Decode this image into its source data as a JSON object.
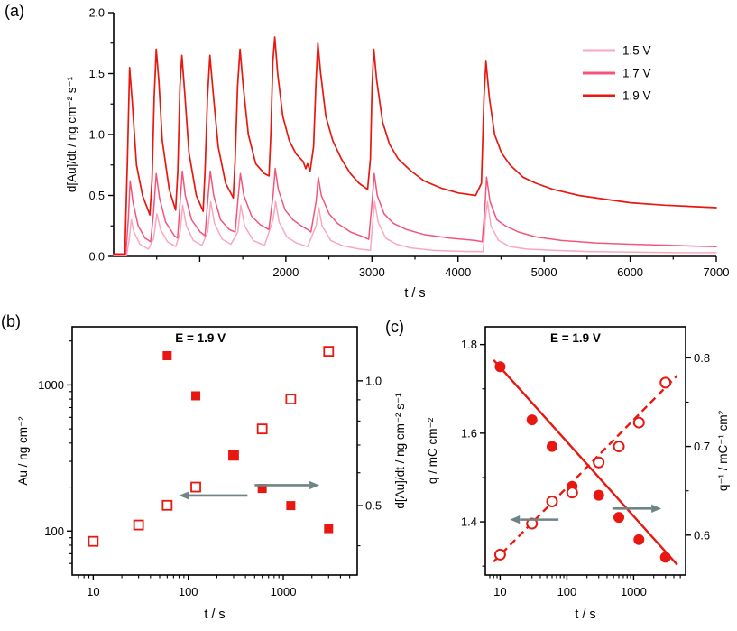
{
  "panels": {
    "a": {
      "label": "(a)"
    },
    "b": {
      "label": "(b)"
    },
    "c": {
      "label": "(c)"
    }
  },
  "colors": {
    "v15": "#f9a7bf",
    "v17": "#f4547c",
    "v19": "#e81810",
    "red": "#e81810",
    "arrow": "#6e8486"
  },
  "chart_data": [
    {
      "id": "a",
      "type": "line",
      "xlabel": "t / s",
      "ylabel": "d[Au]/dt / ng cm⁻² s⁻¹",
      "xlim": [
        0,
        7000
      ],
      "ylim": [
        0,
        2.0
      ],
      "x_tick_values": [
        1000,
        2000,
        3000,
        4000,
        5000,
        6000,
        7000
      ],
      "x_tick_labels": [
        "",
        "2000",
        "3000",
        "4000",
        "5000",
        "6000",
        "7000"
      ],
      "x_minor_ticks": [
        500,
        1500,
        2500,
        3500,
        4500,
        5500,
        6500
      ],
      "y_tick_values": [
        0,
        0.5,
        1.0,
        1.5,
        2.0
      ],
      "y_tick_labels": [
        "0.0",
        "0.5",
        "1.0",
        "1.5",
        "2.0"
      ],
      "y_minor_ticks": [
        0.25,
        0.75,
        1.25,
        1.75
      ],
      "legend": [
        {
          "label": "1.5 V",
          "color_key": "v15"
        },
        {
          "label": "1.7 V",
          "color_key": "v17"
        },
        {
          "label": "1.9 V",
          "color_key": "v19"
        }
      ],
      "series": [
        {
          "name": "1.5 V",
          "color_key": "v15",
          "width": 1.5,
          "x": [
            0,
            150,
            182,
            205,
            235,
            305,
            405,
            465,
            502,
            545,
            625,
            722,
            772,
            802,
            845,
            925,
            1025,
            1092,
            1128,
            1172,
            1262,
            1362,
            1442,
            1478,
            1522,
            1622,
            1752,
            1852,
            1882,
            1922,
            2012,
            2122,
            2252,
            2352,
            2382,
            2422,
            2522,
            2652,
            2852,
            2982,
            3012,
            3032,
            3072,
            3162,
            3282,
            3452,
            3702,
            4102,
            4292,
            4317,
            4342,
            4382,
            4472,
            4602,
            4802,
            5102,
            5502,
            6002,
            6502,
            7000
          ],
          "y": [
            0.005,
            0.005,
            0.15,
            0.3,
            0.2,
            0.1,
            0.06,
            0.15,
            0.35,
            0.22,
            0.12,
            0.08,
            0.2,
            0.42,
            0.25,
            0.13,
            0.09,
            0.2,
            0.45,
            0.27,
            0.14,
            0.1,
            0.2,
            0.42,
            0.25,
            0.13,
            0.09,
            0.3,
            0.45,
            0.28,
            0.16,
            0.11,
            0.08,
            0.25,
            0.4,
            0.25,
            0.13,
            0.09,
            0.06,
            0.05,
            0.3,
            0.45,
            0.28,
            0.15,
            0.1,
            0.07,
            0.05,
            0.04,
            0.04,
            0.3,
            0.45,
            0.25,
            0.13,
            0.08,
            0.06,
            0.05,
            0.04,
            0.035,
            0.03,
            0.03
          ]
        },
        {
          "name": "1.7 V",
          "color_key": "v17",
          "width": 1.5,
          "x": [
            0,
            140,
            170,
            192,
            225,
            285,
            365,
            430,
            462,
            495,
            532,
            605,
            705,
            742,
            772,
            797,
            832,
            905,
            1005,
            1062,
            1092,
            1122,
            1162,
            1242,
            1342,
            1412,
            1442,
            1472,
            1512,
            1602,
            1702,
            1802,
            1852,
            1877,
            1912,
            1992,
            2082,
            2182,
            2252,
            2292,
            2352,
            2377,
            2412,
            2502,
            2602,
            2752,
            2902,
            2962,
            3002,
            3027,
            3062,
            3142,
            3252,
            3402,
            3602,
            3902,
            4202,
            4282,
            4312,
            4332,
            4372,
            4452,
            4552,
            4702,
            4902,
            5202,
            5602,
            6002,
            6502,
            7000
          ],
          "y": [
            0.01,
            0.01,
            0.3,
            0.62,
            0.44,
            0.25,
            0.15,
            0.12,
            0.35,
            0.68,
            0.48,
            0.28,
            0.17,
            0.15,
            0.45,
            0.7,
            0.5,
            0.3,
            0.2,
            0.17,
            0.45,
            0.7,
            0.5,
            0.3,
            0.22,
            0.2,
            0.45,
            0.68,
            0.5,
            0.33,
            0.26,
            0.22,
            0.5,
            0.72,
            0.55,
            0.38,
            0.3,
            0.25,
            0.22,
            0.2,
            0.45,
            0.65,
            0.5,
            0.35,
            0.27,
            0.2,
            0.16,
            0.14,
            0.45,
            0.68,
            0.5,
            0.35,
            0.27,
            0.22,
            0.18,
            0.15,
            0.13,
            0.12,
            0.4,
            0.65,
            0.45,
            0.3,
            0.25,
            0.2,
            0.16,
            0.13,
            0.11,
            0.1,
            0.09,
            0.08
          ]
        },
        {
          "name": "1.9 V",
          "color_key": "v19",
          "width": 1.7,
          "x": [
            0,
            130,
            160,
            185,
            215,
            265,
            335,
            420,
            445,
            470,
            495,
            525,
            565,
            645,
            720,
            745,
            770,
            792,
            825,
            875,
            960,
            1040,
            1062,
            1090,
            1118,
            1155,
            1215,
            1300,
            1390,
            1412,
            1440,
            1468,
            1505,
            1565,
            1650,
            1750,
            1805,
            1825,
            1850,
            1872,
            1905,
            1965,
            2040,
            2120,
            2200,
            2232,
            2252,
            2282,
            2322,
            2352,
            2372,
            2405,
            2465,
            2545,
            2645,
            2750,
            2850,
            2950,
            2982,
            3002,
            3022,
            3055,
            3125,
            3205,
            3305,
            3455,
            3605,
            3805,
            4005,
            4205,
            4272,
            4302,
            4325,
            4365,
            4425,
            4505,
            4605,
            4755,
            4905,
            5105,
            5405,
            5705,
            6005,
            6405,
            7000
          ],
          "y": [
            0.02,
            0.02,
            0.8,
            1.55,
            1.28,
            0.75,
            0.5,
            0.34,
            0.62,
            1.3,
            1.7,
            1.44,
            0.95,
            0.55,
            0.38,
            0.7,
            1.4,
            1.65,
            1.35,
            0.85,
            0.5,
            0.37,
            0.7,
            1.3,
            1.65,
            1.35,
            0.9,
            0.6,
            0.48,
            0.8,
            1.4,
            1.7,
            1.4,
            1.0,
            0.76,
            0.68,
            0.66,
            1.0,
            1.6,
            1.8,
            1.5,
            1.15,
            0.95,
            0.84,
            0.78,
            0.72,
            0.76,
            0.7,
            0.9,
            1.45,
            1.75,
            1.5,
            1.15,
            0.95,
            0.8,
            0.68,
            0.6,
            0.55,
            0.8,
            1.4,
            1.7,
            1.45,
            1.1,
            0.92,
            0.8,
            0.7,
            0.62,
            0.56,
            0.52,
            0.5,
            0.6,
            1.3,
            1.6,
            1.3,
            1.0,
            0.85,
            0.75,
            0.65,
            0.6,
            0.55,
            0.5,
            0.47,
            0.44,
            0.42,
            0.4
          ]
        }
      ]
    },
    {
      "id": "b",
      "type": "scatter",
      "annotation": "E = 1.9 V",
      "xlabel": "t / s",
      "ylabel_left": "Au / ng cm⁻²",
      "ylabel_right": "d[Au]/dt / ng cm⁻² s⁻¹",
      "xscale": "log",
      "xlim": [
        6,
        6000
      ],
      "x_tick_values": [
        10,
        100,
        1000
      ],
      "x_tick_labels": [
        "10",
        "100",
        "1000"
      ],
      "yscale_left": "log",
      "ylim_left": [
        50,
        2500
      ],
      "y_tick_values_left": [
        100,
        1000
      ],
      "y_tick_labels_left": [
        "100",
        "1000"
      ],
      "yscale_right": "log",
      "ylim_right": [
        0.34,
        1.35
      ],
      "y_tick_values_right": [
        0.5,
        1.0
      ],
      "y_tick_labels_right": [
        "0.5",
        "1.0"
      ],
      "series": [
        {
          "name": "Au",
          "axis": "left",
          "marker": "square-open",
          "color_key": "red",
          "x": [
            10,
            30,
            60,
            120,
            300,
            600,
            1200,
            3000
          ],
          "y": [
            85,
            110,
            150,
            200,
            330,
            500,
            800,
            1700
          ]
        },
        {
          "name": "d[Au]/dt",
          "axis": "right",
          "marker": "square-filled",
          "color_key": "red",
          "x": [
            60,
            120,
            300,
            600,
            1200,
            3000
          ],
          "y": [
            1.15,
            0.92,
            0.66,
            0.55,
            0.5,
            0.44
          ]
        }
      ],
      "arrows": [
        {
          "axis": "left",
          "from_x": 420,
          "to_x": 80,
          "y": 175
        },
        {
          "axis": "right",
          "from_x": 500,
          "to_x": 2400,
          "y": 0.56
        }
      ]
    },
    {
      "id": "c",
      "type": "scatter",
      "annotation": "E = 1.9 V",
      "xlabel": "t / s",
      "ylabel_left": "q / mC cm⁻²",
      "ylabel_right": "q⁻¹ / mC⁻¹ cm²",
      "xscale": "log",
      "xlim": [
        6,
        6000
      ],
      "x_tick_values": [
        10,
        100,
        1000
      ],
      "x_tick_labels": [
        "10",
        "100",
        "1000"
      ],
      "yscale_left": "linear",
      "ylim_left": [
        1.28,
        1.84
      ],
      "y_tick_values_left": [
        1.4,
        1.6,
        1.8
      ],
      "y_tick_labels_left": [
        "1.4",
        "1.6",
        "1.8"
      ],
      "y_minor_left": [
        1.3,
        1.5,
        1.7
      ],
      "yscale_right": "linear",
      "ylim_right": [
        0.555,
        0.835
      ],
      "y_tick_values_right": [
        0.6,
        0.7,
        0.8
      ],
      "y_tick_labels_right": [
        "0.6",
        "0.7",
        "0.8"
      ],
      "y_minor_right": [
        0.65,
        0.75
      ],
      "series": [
        {
          "name": "q",
          "axis": "left",
          "marker": "circle-filled",
          "color_key": "red",
          "x": [
            10,
            30,
            60,
            120,
            300,
            600,
            1200,
            3000
          ],
          "y": [
            1.75,
            1.63,
            1.57,
            1.48,
            1.46,
            1.41,
            1.36,
            1.32
          ]
        },
        {
          "name": "q-inverse",
          "axis": "right",
          "marker": "circle-open",
          "color_key": "red",
          "x": [
            10,
            30,
            60,
            120,
            300,
            600,
            1200,
            3000
          ],
          "y": [
            0.578,
            0.613,
            0.638,
            0.648,
            0.682,
            0.7,
            0.727,
            0.772
          ]
        }
      ],
      "lines": [
        {
          "axis": "left",
          "style": "solid",
          "x": [
            8,
            4500
          ],
          "y": [
            1.765,
            1.303
          ]
        },
        {
          "axis": "right",
          "style": "dashed",
          "x": [
            8,
            4500
          ],
          "y": [
            0.57,
            0.78
          ]
        }
      ],
      "arrows": [
        {
          "axis": "left",
          "from_x": 75,
          "to_x": 14,
          "y": 1.405
        },
        {
          "axis": "left",
          "from_x": 480,
          "to_x": 2600,
          "y": 1.43
        }
      ]
    }
  ]
}
